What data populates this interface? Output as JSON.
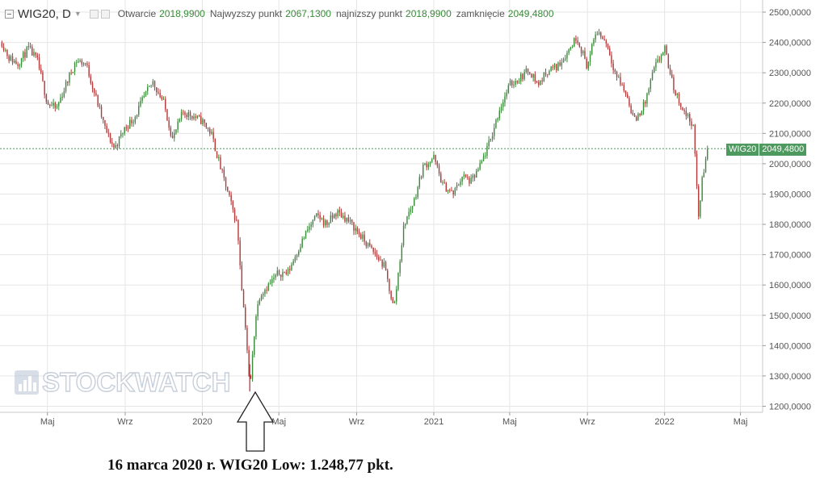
{
  "header": {
    "symbol": "WIG20, D",
    "caret": "▼",
    "open_label": "Otwarcie",
    "open_value": "2018,9900",
    "high_label": "Najwyzszy punkt",
    "high_value": "2067,1300",
    "low_label": "najnizszy punkt",
    "low_value": "2018,9900",
    "close_label": "zamknięcie",
    "close_value": "2049,4800"
  },
  "price_tag": {
    "symbol": "WIG20",
    "value": "2049,4800"
  },
  "watermark": "STOCKWATCH",
  "caption": "16 marca 2020 r. WIG20 Low: 1.248,77 pkt.",
  "colors": {
    "up": "#3a8a3a",
    "down": "#b23a3a",
    "grid": "#e6e6e6",
    "last_line": "#4e9a5e",
    "tag_bg": "#4e9a5e"
  },
  "chart_data": {
    "type": "line",
    "title": "WIG20, D",
    "ylim": [
      1180,
      2540
    ],
    "y_ticks": [
      "2500,0000",
      "2400,0000",
      "2300,0000",
      "2200,0000",
      "2100,0000",
      "2000,0000",
      "1900,0000",
      "1800,0000",
      "1700,0000",
      "1600,0000",
      "1500,0000",
      "1400,0000",
      "1300,0000",
      "1200,0000"
    ],
    "y_tick_values": [
      2500,
      2400,
      2300,
      2200,
      2100,
      2000,
      1900,
      1800,
      1700,
      1600,
      1500,
      1400,
      1300,
      1200
    ],
    "x_tick_labels": [
      "Maj",
      "Wrz",
      "2020",
      "Maj",
      "Wrz",
      "2021",
      "Maj",
      "Wrz",
      "2022",
      "Maj"
    ],
    "x_tick_dates": [
      "2019-05-01",
      "2019-09-01",
      "2020-01-01",
      "2020-05-01",
      "2020-09-01",
      "2021-01-01",
      "2021-05-01",
      "2021-09-01",
      "2022-01-01",
      "2022-05-01"
    ],
    "x_range": [
      "2019-02-15",
      "2022-06-05"
    ],
    "last_value": 2049.48,
    "low_marker": {
      "date": "2020-03-16",
      "value": 1248.77
    },
    "series": [
      {
        "x": [
          "2019-02-18",
          "2019-03-01",
          "2019-03-15",
          "2019-04-01",
          "2019-04-15",
          "2019-05-01",
          "2019-05-15",
          "2019-06-01",
          "2019-06-15",
          "2019-07-01",
          "2019-07-15",
          "2019-08-01",
          "2019-08-15",
          "2019-09-01",
          "2019-09-15",
          "2019-10-01",
          "2019-10-15",
          "2019-11-01",
          "2019-11-15",
          "2019-12-01",
          "2019-12-15",
          "2020-01-01",
          "2020-01-15",
          "2020-02-01",
          "2020-02-15",
          "2020-02-25",
          "2020-03-05",
          "2020-03-10",
          "2020-03-16",
          "2020-03-25",
          "2020-04-01",
          "2020-04-15",
          "2020-05-01",
          "2020-05-15",
          "2020-06-01",
          "2020-06-15",
          "2020-07-01",
          "2020-07-15",
          "2020-08-01",
          "2020-08-15",
          "2020-09-01",
          "2020-09-15",
          "2020-10-01",
          "2020-10-15",
          "2020-10-30",
          "2020-11-15",
          "2020-12-01",
          "2020-12-15",
          "2021-01-01",
          "2021-01-15",
          "2021-02-01",
          "2021-02-15",
          "2021-03-01",
          "2021-03-15",
          "2021-04-01",
          "2021-04-15",
          "2021-05-01",
          "2021-05-15",
          "2021-06-01",
          "2021-06-15",
          "2021-07-01",
          "2021-07-15",
          "2021-08-01",
          "2021-08-15",
          "2021-09-01",
          "2021-09-15",
          "2021-10-01",
          "2021-10-15",
          "2021-11-01",
          "2021-11-15",
          "2021-12-01",
          "2021-12-15",
          "2022-01-01",
          "2022-01-15",
          "2022-02-01",
          "2022-02-15",
          "2022-02-24",
          "2022-03-01",
          "2022-03-10"
        ],
        "y": [
          2400,
          2350,
          2330,
          2380,
          2340,
          2200,
          2180,
          2270,
          2340,
          2330,
          2230,
          2110,
          2050,
          2120,
          2150,
          2220,
          2270,
          2200,
          2080,
          2170,
          2160,
          2140,
          2100,
          1970,
          1870,
          1800,
          1550,
          1450,
          1249,
          1490,
          1570,
          1600,
          1640,
          1640,
          1720,
          1780,
          1830,
          1800,
          1840,
          1820,
          1780,
          1740,
          1700,
          1660,
          1520,
          1800,
          1880,
          1990,
          2020,
          1930,
          1900,
          1960,
          1940,
          1990,
          2080,
          2180,
          2260,
          2280,
          2310,
          2260,
          2310,
          2320,
          2370,
          2420,
          2320,
          2440,
          2400,
          2300,
          2230,
          2140,
          2200,
          2310,
          2380,
          2250,
          2170,
          2130,
          1820,
          1940,
          2049
        ]
      }
    ]
  }
}
